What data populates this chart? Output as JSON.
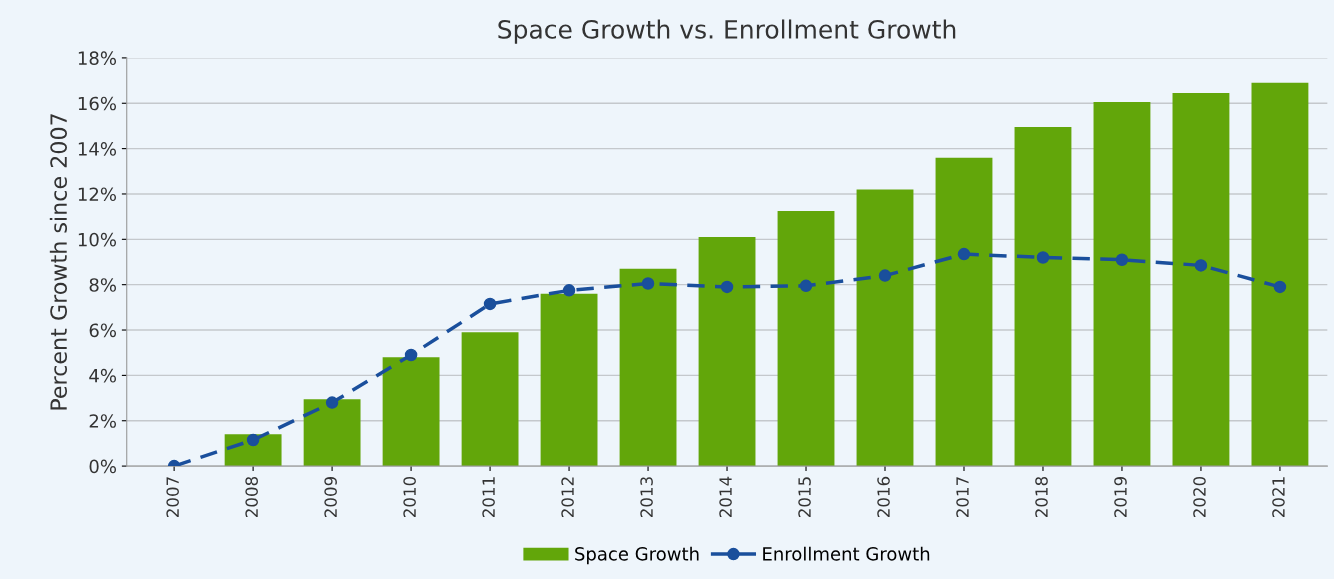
{
  "chart_data": {
    "type": "bar",
    "title": "Space Growth vs. Enrollment Growth",
    "ylabel": "Percent Growth since 2007",
    "categories": [
      "2007",
      "2008",
      "2009",
      "2010",
      "2011",
      "2012",
      "2013",
      "2014",
      "2015",
      "2016",
      "2017",
      "2018",
      "2019",
      "2020",
      "2021"
    ],
    "series": [
      {
        "name": "Space Growth",
        "color": "#62a60a",
        "values": [
          null,
          1.4,
          2.95,
          4.8,
          5.9,
          7.6,
          8.7,
          10.1,
          11.25,
          12.2,
          13.6,
          14.95,
          16.05,
          16.45,
          16.9
        ]
      },
      {
        "name": "Enrollment Growth",
        "type": "line",
        "color": "#1a4f9c",
        "marker": "circle",
        "line_style": "dashed",
        "values": [
          0,
          1.15,
          2.8,
          4.9,
          7.15,
          7.75,
          8.05,
          7.9,
          7.95,
          8.4,
          9.35,
          9.2,
          9.1,
          8.85,
          7.9
        ]
      }
    ],
    "ylim": [
      0,
      18
    ],
    "yticks": [
      {
        "value": 0,
        "label": "0%"
      },
      {
        "value": 2,
        "label": "2%"
      },
      {
        "value": 4,
        "label": "4%"
      },
      {
        "value": 6,
        "label": "6%"
      },
      {
        "value": 8,
        "label": "8%"
      },
      {
        "value": 10,
        "label": "10%"
      },
      {
        "value": 12,
        "label": "12%"
      },
      {
        "value": 14,
        "label": "14%"
      },
      {
        "value": 16,
        "label": "16%"
      },
      {
        "value": 18,
        "label": "18%"
      }
    ],
    "grid": "y",
    "legend": "bottom"
  }
}
